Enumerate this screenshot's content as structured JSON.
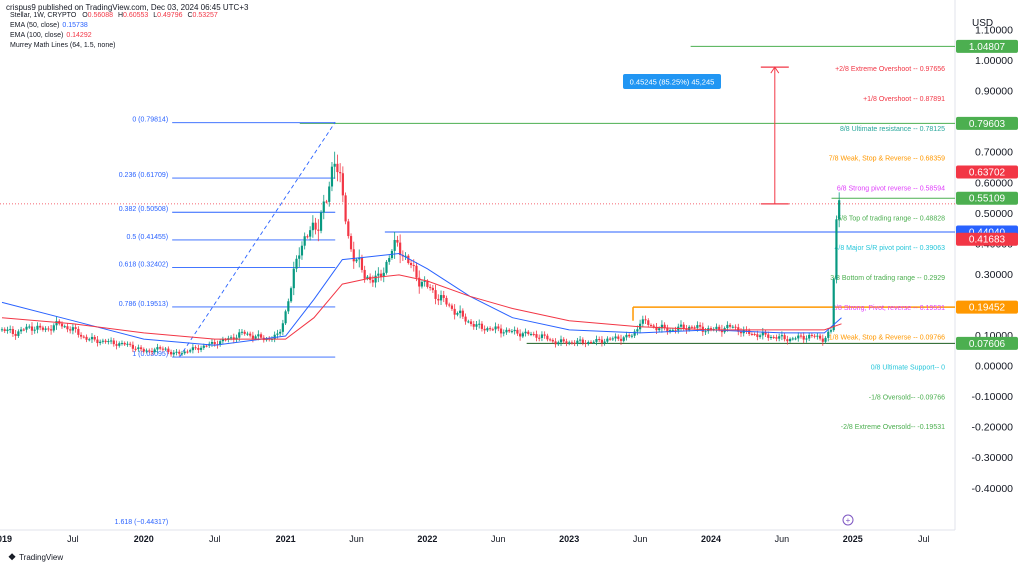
{
  "header": {
    "publisher": "crispus9 published on TradingView.com, Dec 03, 2024 06:45 UTC+3",
    "symbol": "Stellar, 1W, CRYPTO",
    "ohlc": [
      {
        "label": "O",
        "value": "0.56088"
      },
      {
        "label": "H",
        "value": "0.60553"
      },
      {
        "label": "L",
        "value": "0.49796"
      },
      {
        "label": "C",
        "value": "0.53257"
      }
    ],
    "indicators": [
      {
        "label": "EMA (50, close)",
        "value": "0.15738",
        "color": "#2962ff"
      },
      {
        "label": "EMA (100, close)",
        "value": "0.14292",
        "color": "#f23645"
      },
      {
        "label": "Murrey Math Lines (64, 1.5, none)",
        "value": "",
        "color": "#131722"
      }
    ]
  },
  "currency_label": "USD",
  "footer": {
    "logo_text": "TradingView"
  },
  "colors": {
    "up": "#089981",
    "down": "#f23645",
    "ema50": "#2962ff",
    "ema100": "#f23645",
    "fib": "#2962ff",
    "green_line": "#4caf50",
    "orange_line": "#ff9800",
    "measure": "#f23645"
  },
  "chart_data": {
    "type": "candlestick",
    "title": "Stellar, 1W, CRYPTO",
    "ylabel": "USD",
    "ylim": [
      -0.43,
      1.13
    ],
    "y_ticks": [
      "1.10000",
      "1.00000",
      "0.90000",
      "0.80000",
      "0.70000",
      "0.60000",
      "0.50000",
      "0.40000",
      "0.30000",
      "0.20000",
      "0.10000",
      "0.00000",
      "-0.10000",
      "-0.20000",
      "-0.30000",
      "-0.40000"
    ],
    "x_ticks": [
      "2019",
      "Jul",
      "2020",
      "Jul",
      "2021",
      "Jun",
      "2022",
      "Jun",
      "2023",
      "Jun",
      "2024",
      "Jun",
      "2025",
      "Jul"
    ],
    "x_range": [
      "2019-01",
      "2025-09"
    ],
    "price_labels": [
      {
        "value": 1.04807,
        "text": "1.04807",
        "color": "#4caf50"
      },
      {
        "value": 0.79603,
        "text": "0.79603",
        "color": "#4caf50"
      },
      {
        "value": 0.63702,
        "text": "0.63702",
        "color": "#f23645"
      },
      {
        "value": 0.55109,
        "text": "0.55109",
        "color": "#4caf50"
      },
      {
        "value": 0.4404,
        "text": "0.44040",
        "color": "#2962ff"
      },
      {
        "value": 0.41683,
        "text": "0.41683",
        "color": "#f23645"
      },
      {
        "value": 0.19452,
        "text": "0.19452",
        "color": "#ff9800"
      },
      {
        "value": 0.07606,
        "text": "0.07606",
        "color": "#4caf50"
      }
    ],
    "murrey_lines": [
      {
        "text": "+2/8 Extreme Overshoot --  0.97656",
        "value": 0.97656,
        "color": "#f23645"
      },
      {
        "text": "+1/8 Overshoot --  0.87891",
        "value": 0.87891,
        "color": "#f23645"
      },
      {
        "text": "8/8 Ultimate resistance --  0.78125",
        "value": 0.78125,
        "color": "#26a69a"
      },
      {
        "text": "7/8 Weak, Stop & Reverse --  0.68359",
        "value": 0.68359,
        "color": "#ff9800"
      },
      {
        "text": "6/8 Strong pivot reverse --  0.58594",
        "value": 0.58594,
        "color": "#e040fb"
      },
      {
        "text": "5/8 Top of trading range --  0.48828",
        "value": 0.48828,
        "color": "#4caf50"
      },
      {
        "text": "4/8 Major S/R pivot point --  0.39063",
        "value": 0.39063,
        "color": "#26c6da"
      },
      {
        "text": "3/8 Bottom of trading range --  0.2929",
        "value": 0.2929,
        "color": "#4caf50"
      },
      {
        "text": "2/8 Strong, Pivot, reverse --  0.19531",
        "value": 0.19531,
        "color": "#e040fb"
      },
      {
        "text": "1/8 Weak, Stop & Reverse --  0.09766",
        "value": 0.09766,
        "color": "#ff9800"
      },
      {
        "text": "0/8 Ultimate Support--  0",
        "value": 0,
        "color": "#26c6da"
      },
      {
        "text": "-1/8 Oversold--  -0.09766",
        "value": -0.09766,
        "color": "#4caf50"
      },
      {
        "text": "-2/8 Extreme Oversold--  -0.19531",
        "value": -0.19531,
        "color": "#4caf50"
      }
    ],
    "fib_levels": [
      {
        "text": "0 (0.79814)",
        "value": 0.79814
      },
      {
        "text": "0.236 (0.61709)",
        "value": 0.61709
      },
      {
        "text": "0.382 (0.50508)",
        "value": 0.50508
      },
      {
        "text": "0.5 (0.41455)",
        "value": 0.41455
      },
      {
        "text": "0.618 (0.32402)",
        "value": 0.32402
      },
      {
        "text": "0.786 (0.19513)",
        "value": 0.19513
      },
      {
        "text": "1 (0.03095)",
        "value": 0.03095
      },
      {
        "text": "1.618 (−0.44317)",
        "value": -0.44317
      }
    ],
    "measurement": {
      "text": "0.45245 (85.25%) 45,245",
      "from": 0.53257,
      "to": 0.98
    }
  }
}
